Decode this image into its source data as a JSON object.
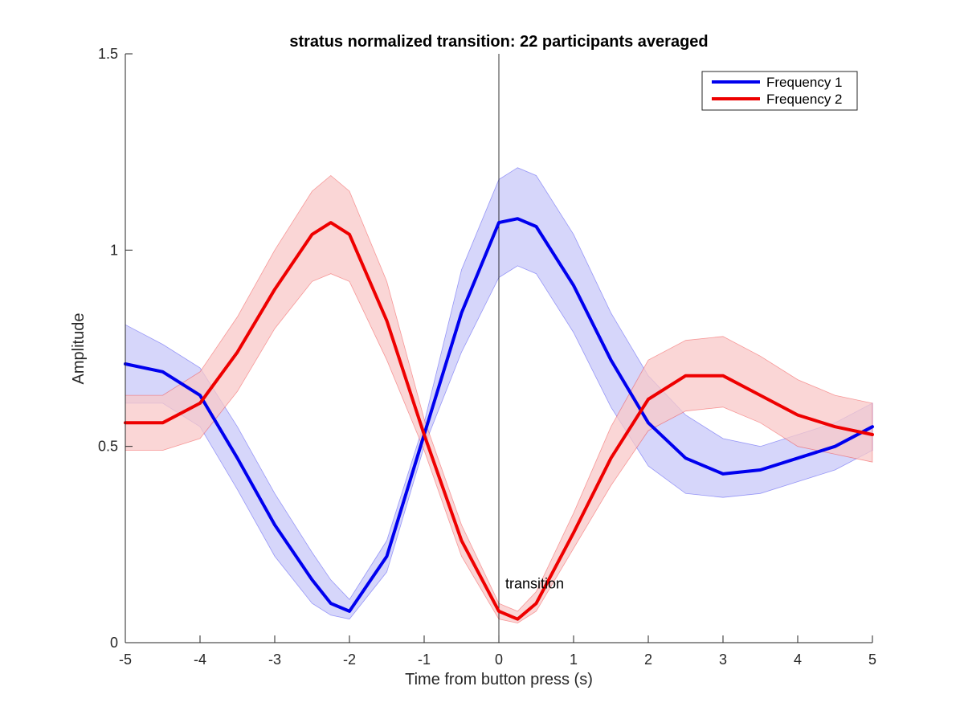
{
  "chart_data": {
    "type": "line",
    "title": "stratus normalized transition: 22 participants averaged",
    "xlabel": "Time from button press (s)",
    "ylabel": "Amplitude",
    "xlim": [
      -5,
      5
    ],
    "ylim": [
      0,
      1.5
    ],
    "xticks": [
      -5,
      -4,
      -3,
      -2,
      -1,
      0,
      1,
      2,
      3,
      4,
      5
    ],
    "yticks": [
      0,
      0.5,
      1,
      1.5
    ],
    "xtick_labels": [
      "-5",
      "-4",
      "-3",
      "-2",
      "-1",
      "0",
      "1",
      "2",
      "3",
      "4",
      "5"
    ],
    "ytick_labels": [
      "0",
      "0.5",
      "1",
      "1.5"
    ],
    "grid": false,
    "legend_position": "top-right",
    "vertical_line": {
      "x": 0,
      "label": "transition",
      "label_y": 0.15
    },
    "x": [
      -5,
      -4.5,
      -4,
      -3.5,
      -3,
      -2.5,
      -2.25,
      -2,
      -1.5,
      -1,
      -0.5,
      0,
      0.25,
      0.5,
      1,
      1.5,
      2,
      2.5,
      3,
      3.5,
      4,
      4.5,
      5
    ],
    "series": [
      {
        "name": "Frequency 1",
        "color": "#0000ee",
        "band_color": "#c8c8f8",
        "values": [
          0.71,
          0.69,
          0.63,
          0.47,
          0.3,
          0.16,
          0.1,
          0.08,
          0.22,
          0.53,
          0.84,
          1.07,
          1.08,
          1.06,
          0.91,
          0.72,
          0.56,
          0.47,
          0.43,
          0.44,
          0.47,
          0.5,
          0.55
        ],
        "upper": [
          0.81,
          0.76,
          0.7,
          0.55,
          0.38,
          0.23,
          0.16,
          0.11,
          0.26,
          0.56,
          0.95,
          1.18,
          1.21,
          1.19,
          1.04,
          0.84,
          0.68,
          0.58,
          0.52,
          0.5,
          0.53,
          0.56,
          0.61
        ],
        "lower": [
          0.61,
          0.61,
          0.55,
          0.39,
          0.22,
          0.1,
          0.07,
          0.06,
          0.18,
          0.5,
          0.74,
          0.93,
          0.96,
          0.94,
          0.79,
          0.6,
          0.45,
          0.38,
          0.37,
          0.38,
          0.41,
          0.44,
          0.49
        ]
      },
      {
        "name": "Frequency 2",
        "color": "#ee0000",
        "band_color": "#f8c8c8",
        "values": [
          0.56,
          0.56,
          0.61,
          0.74,
          0.9,
          1.04,
          1.07,
          1.04,
          0.82,
          0.53,
          0.26,
          0.08,
          0.06,
          0.1,
          0.28,
          0.47,
          0.62,
          0.68,
          0.68,
          0.63,
          0.58,
          0.55,
          0.53
        ],
        "upper": [
          0.63,
          0.63,
          0.69,
          0.83,
          1.0,
          1.15,
          1.19,
          1.15,
          0.92,
          0.57,
          0.3,
          0.1,
          0.08,
          0.13,
          0.33,
          0.55,
          0.72,
          0.77,
          0.78,
          0.73,
          0.67,
          0.63,
          0.61
        ],
        "lower": [
          0.49,
          0.49,
          0.52,
          0.64,
          0.8,
          0.92,
          0.94,
          0.92,
          0.72,
          0.49,
          0.22,
          0.06,
          0.05,
          0.08,
          0.24,
          0.4,
          0.54,
          0.59,
          0.6,
          0.56,
          0.5,
          0.48,
          0.46
        ]
      }
    ]
  }
}
